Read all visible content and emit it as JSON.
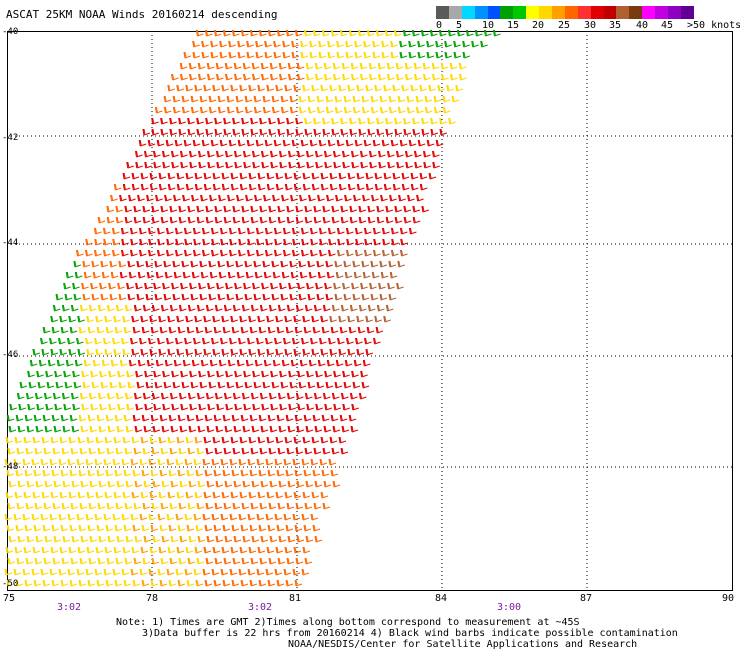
{
  "header": {
    "title": "ASCAT 25KM NOAA Winds 20160214 descending"
  },
  "legend": {
    "colors": [
      "#5a5a5a",
      "#a8a8a8",
      "#00d8ff",
      "#0090ff",
      "#0050ff",
      "#00a000",
      "#00c800",
      "#ffff00",
      "#ffd800",
      "#ffa000",
      "#ff6600",
      "#ff3030",
      "#e00000",
      "#c00000",
      "#b06030",
      "#7a3a10",
      "#ff00ff",
      "#c000e0",
      "#9000c0",
      "#600090"
    ],
    "labels": [
      "0",
      "5",
      "10",
      "15",
      "20",
      "25",
      "30",
      "35",
      "40",
      "45",
      ">50 knots"
    ]
  },
  "map": {
    "lat_labels": [
      "-40",
      "-42",
      "-44",
      "-46",
      "-48",
      "-50"
    ],
    "lon_labels": [
      "75",
      "78",
      "81",
      "84",
      "87",
      "90"
    ],
    "time_labels": [
      "3:02",
      "3:02",
      "3:00"
    ]
  },
  "notes": {
    "line1": "Note: 1) Times are GMT 2)Times along bottom correspond to measurement at ~45S",
    "line2": "3)Data buffer is 22 hrs from 20160214 4) Black wind barbs indicate possible contamination",
    "line3": "NOAA/NESDIS/Center for Satellite Applications and Research"
  }
}
